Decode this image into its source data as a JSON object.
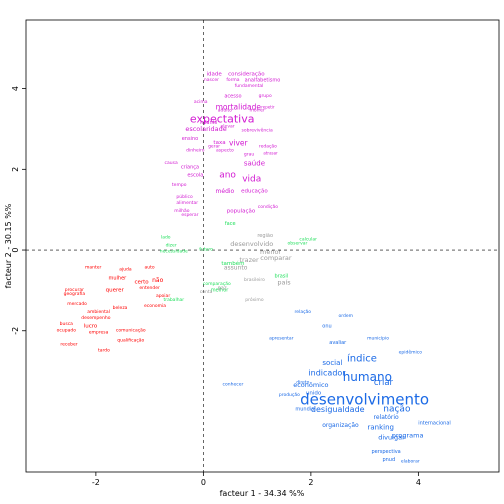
{
  "chart_data": {
    "type": "scatter",
    "title": "",
    "xlabel": "facteur 1 - 34.34 %%",
    "ylabel": "facteur 2 - 30.15 %%",
    "xlim": [
      -3.3,
      5.5
    ],
    "ylim": [
      -5.5,
      5.7
    ],
    "x_ticks": [
      -2,
      0,
      2,
      4
    ],
    "y_ticks": [
      -2,
      0,
      2,
      4
    ],
    "grid": false,
    "reference_lines": {
      "x": 0,
      "y": 0
    },
    "colors": {
      "purple": "#d21ad2",
      "red": "#ff0000",
      "green": "#1fdf5b",
      "blue": "#1b6ae6",
      "gray": "#9b9b9b"
    },
    "series": [
      {
        "color": "purple",
        "points": [
          {
            "label": "expectativa",
            "x": 0.35,
            "y": 3.25,
            "size": 11
          },
          {
            "label": "ano",
            "x": 0.45,
            "y": 1.85,
            "size": 9
          },
          {
            "label": "vida",
            "x": 0.9,
            "y": 1.75,
            "size": 9
          },
          {
            "label": "mortalidade",
            "x": 0.65,
            "y": 3.55,
            "size": 7.5
          },
          {
            "label": "viver",
            "x": 0.65,
            "y": 2.65,
            "size": 7.5
          },
          {
            "label": "escolaridade",
            "x": 0.05,
            "y": 3.0,
            "size": 6.5
          },
          {
            "label": "idade",
            "x": 0.2,
            "y": 4.35,
            "size": 5.5
          },
          {
            "label": "consideração",
            "x": 0.8,
            "y": 4.35,
            "size": 5.5
          },
          {
            "label": "analfabetismo",
            "x": 1.1,
            "y": 4.2,
            "size": 5
          },
          {
            "label": "nascer",
            "x": 0.15,
            "y": 4.2,
            "size": 4.5
          },
          {
            "label": "forma",
            "x": 0.55,
            "y": 4.2,
            "size": 4.5
          },
          {
            "label": "fundamental",
            "x": 0.85,
            "y": 4.05,
            "size": 4.5
          },
          {
            "label": "acesso",
            "x": 0.55,
            "y": 3.8,
            "size": 5
          },
          {
            "label": "grupo",
            "x": 1.15,
            "y": 3.8,
            "size": 4.5
          },
          {
            "label": "acima",
            "x": -0.05,
            "y": 3.65,
            "size": 4.5
          },
          {
            "label": "morrer",
            "x": 1.0,
            "y": 3.45,
            "size": 4.5
          },
          {
            "label": "adulto",
            "x": 0.4,
            "y": 3.45,
            "size": 4.5
          },
          {
            "label": "repetir",
            "x": 1.2,
            "y": 3.55,
            "size": 4
          },
          {
            "label": "infantil",
            "x": 0.1,
            "y": 3.15,
            "size": 5
          },
          {
            "label": "elevar",
            "x": 0.45,
            "y": 3.05,
            "size": 4.5
          },
          {
            "label": "sobrevivência",
            "x": 1.0,
            "y": 2.95,
            "size": 4.5
          },
          {
            "label": "ensino",
            "x": -0.25,
            "y": 2.75,
            "size": 5
          },
          {
            "label": "taxa",
            "x": 0.3,
            "y": 2.65,
            "size": 5.5
          },
          {
            "label": "redação",
            "x": 1.2,
            "y": 2.55,
            "size": 4.5
          },
          {
            "label": "gerar",
            "x": 0.2,
            "y": 2.55,
            "size": 4.5
          },
          {
            "label": "dinheiro",
            "x": -0.15,
            "y": 2.45,
            "size": 4.5
          },
          {
            "label": "aspecto",
            "x": 0.4,
            "y": 2.45,
            "size": 4.5
          },
          {
            "label": "grau",
            "x": 0.85,
            "y": 2.35,
            "size": 4.5
          },
          {
            "label": "atrasar",
            "x": 1.25,
            "y": 2.4,
            "size": 4
          },
          {
            "label": "saúde",
            "x": 0.95,
            "y": 2.15,
            "size": 7
          },
          {
            "label": "causa",
            "x": -0.6,
            "y": 2.15,
            "size": 4.5
          },
          {
            "label": "criança",
            "x": -0.25,
            "y": 2.05,
            "size": 5
          },
          {
            "label": "escola",
            "x": -0.15,
            "y": 1.85,
            "size": 5
          },
          {
            "label": "tempo",
            "x": -0.45,
            "y": 1.6,
            "size": 4.5
          },
          {
            "label": "educação",
            "x": 0.95,
            "y": 1.45,
            "size": 5.5
          },
          {
            "label": "médio",
            "x": 0.4,
            "y": 1.45,
            "size": 6
          },
          {
            "label": "público",
            "x": -0.35,
            "y": 1.3,
            "size": 4.5
          },
          {
            "label": "alimentar",
            "x": -0.3,
            "y": 1.15,
            "size": 4.5
          },
          {
            "label": "condição",
            "x": 1.2,
            "y": 1.05,
            "size": 4.5
          },
          {
            "label": "população",
            "x": 0.7,
            "y": 0.95,
            "size": 5.5
          },
          {
            "label": "esperar",
            "x": -0.25,
            "y": 0.85,
            "size": 4.5
          },
          {
            "label": "milhão",
            "x": -0.4,
            "y": 0.95,
            "size": 4.5
          }
        ]
      },
      {
        "color": "red",
        "points": [
          {
            "label": "manter",
            "x": -2.05,
            "y": -0.45,
            "size": 4.5
          },
          {
            "label": "ajuda",
            "x": -1.45,
            "y": -0.5,
            "size": 4.5
          },
          {
            "label": "auto",
            "x": -1.0,
            "y": -0.45,
            "size": 4.5
          },
          {
            "label": "mulher",
            "x": -1.6,
            "y": -0.7,
            "size": 5
          },
          {
            "label": "não",
            "x": -0.85,
            "y": -0.75,
            "size": 6
          },
          {
            "label": "procurar",
            "x": -2.4,
            "y": -1.0,
            "size": 4.5
          },
          {
            "label": "querer",
            "x": -1.65,
            "y": -1.0,
            "size": 5.5
          },
          {
            "label": "geografia",
            "x": -2.4,
            "y": -1.1,
            "size": 4.5
          },
          {
            "label": "entender",
            "x": -1.0,
            "y": -0.95,
            "size": 4.5
          },
          {
            "label": "mercado",
            "x": -2.35,
            "y": -1.35,
            "size": 4.5
          },
          {
            "label": "beleza",
            "x": -1.55,
            "y": -1.45,
            "size": 4.5
          },
          {
            "label": "ambiental",
            "x": -1.95,
            "y": -1.55,
            "size": 4.5
          },
          {
            "label": "busca",
            "x": -2.55,
            "y": -1.85,
            "size": 4.5
          },
          {
            "label": "desempenho",
            "x": -2.0,
            "y": -1.7,
            "size": 4.5
          },
          {
            "label": "empresa",
            "x": -1.95,
            "y": -2.05,
            "size": 4.5
          },
          {
            "label": "lucro",
            "x": -2.1,
            "y": -1.9,
            "size": 5.5
          },
          {
            "label": "comunicação",
            "x": -1.35,
            "y": -2.0,
            "size": 4.5
          },
          {
            "label": "ocupado",
            "x": -2.55,
            "y": -2.0,
            "size": 4.5
          },
          {
            "label": "qualificação",
            "x": -1.35,
            "y": -2.25,
            "size": 4.5
          },
          {
            "label": "receber",
            "x": -2.5,
            "y": -2.35,
            "size": 4.5
          },
          {
            "label": "economia",
            "x": -0.9,
            "y": -1.4,
            "size": 4.5
          },
          {
            "label": "apoiar",
            "x": -0.75,
            "y": -1.15,
            "size": 4.5
          },
          {
            "label": "certo",
            "x": -1.15,
            "y": -0.8,
            "size": 5.5
          },
          {
            "label": "tardo",
            "x": -1.85,
            "y": -2.5,
            "size": 4.5
          }
        ]
      },
      {
        "color": "green",
        "points": [
          {
            "label": "face",
            "x": 0.5,
            "y": 0.65,
            "size": 5
          },
          {
            "label": "lado",
            "x": -0.7,
            "y": 0.3,
            "size": 4.5
          },
          {
            "label": "dizer",
            "x": -0.6,
            "y": 0.1,
            "size": 4.5
          },
          {
            "label": "necessidade",
            "x": -0.55,
            "y": -0.05,
            "size": 4.5
          },
          {
            "label": "futuro",
            "x": 0.05,
            "y": 0.0,
            "size": 4.5
          },
          {
            "label": "também",
            "x": 0.55,
            "y": -0.35,
            "size": 5.5
          },
          {
            "label": "brasil",
            "x": 1.45,
            "y": -0.65,
            "size": 5
          },
          {
            "label": "observar",
            "x": 1.75,
            "y": 0.15,
            "size": 4.5
          },
          {
            "label": "calcular",
            "x": 1.95,
            "y": 0.25,
            "size": 4.5
          },
          {
            "label": "trabalhar",
            "x": -0.55,
            "y": -1.25,
            "size": 4.5
          },
          {
            "label": "melhor",
            "x": 0.3,
            "y": -1.0,
            "size": 5
          },
          {
            "label": "comparação",
            "x": 0.25,
            "y": -0.85,
            "size": 4.5
          }
        ]
      },
      {
        "color": "gray",
        "points": [
          {
            "label": "desenvolvido",
            "x": 0.9,
            "y": 0.15,
            "size": 6.5
          },
          {
            "label": "menor",
            "x": 1.25,
            "y": -0.05,
            "size": 6.5
          },
          {
            "label": "comparar",
            "x": 1.35,
            "y": -0.2,
            "size": 6.5
          },
          {
            "label": "trazer",
            "x": 0.85,
            "y": -0.25,
            "size": 6.5
          },
          {
            "label": "assunto",
            "x": 0.6,
            "y": -0.45,
            "size": 6
          },
          {
            "label": "país",
            "x": 1.5,
            "y": -0.8,
            "size": 6.5
          },
          {
            "label": "região",
            "x": 1.15,
            "y": 0.35,
            "size": 5
          },
          {
            "label": "paz",
            "x": 0.35,
            "y": -0.95,
            "size": 5
          },
          {
            "label": "conta",
            "x": 0.05,
            "y": -1.05,
            "size": 4.5
          },
          {
            "label": "brasileiro",
            "x": 0.95,
            "y": -0.75,
            "size": 4.5
          },
          {
            "label": "próximo",
            "x": 0.95,
            "y": -1.25,
            "size": 4.5
          }
        ]
      },
      {
        "color": "blue",
        "points": [
          {
            "label": "desenvolvimento",
            "x": 3.0,
            "y": -3.7,
            "size": 15
          },
          {
            "label": "humano",
            "x": 3.05,
            "y": -3.15,
            "size": 12
          },
          {
            "label": "índice",
            "x": 2.95,
            "y": -2.7,
            "size": 10
          },
          {
            "label": "desigualdade",
            "x": 2.5,
            "y": -3.95,
            "size": 8
          },
          {
            "label": "nação",
            "x": 3.6,
            "y": -3.95,
            "size": 9
          },
          {
            "label": "criar",
            "x": 3.35,
            "y": -3.3,
            "size": 8.5
          },
          {
            "label": "indicador",
            "x": 2.3,
            "y": -3.05,
            "size": 8
          },
          {
            "label": "social",
            "x": 2.4,
            "y": -2.8,
            "size": 7
          },
          {
            "label": "econômico",
            "x": 2.0,
            "y": -3.35,
            "size": 6.5
          },
          {
            "label": "unido",
            "x": 2.05,
            "y": -3.55,
            "size": 5.5
          },
          {
            "label": "relatório",
            "x": 3.4,
            "y": -4.15,
            "size": 6
          },
          {
            "label": "organização",
            "x": 2.55,
            "y": -4.35,
            "size": 6
          },
          {
            "label": "ranking",
            "x": 3.3,
            "y": -4.4,
            "size": 7
          },
          {
            "label": "programa",
            "x": 3.8,
            "y": -4.6,
            "size": 6.5
          },
          {
            "label": "divulgar",
            "x": 3.5,
            "y": -4.65,
            "size": 6.5
          },
          {
            "label": "internacional",
            "x": 4.3,
            "y": -4.3,
            "size": 5
          },
          {
            "label": "perspectiva",
            "x": 3.4,
            "y": -5.0,
            "size": 5
          },
          {
            "label": "pnud",
            "x": 3.45,
            "y": -5.2,
            "size": 5
          },
          {
            "label": "elaborar",
            "x": 3.85,
            "y": -5.25,
            "size": 4.5
          },
          {
            "label": "mundial",
            "x": 1.9,
            "y": -3.95,
            "size": 5
          },
          {
            "label": "ordem",
            "x": 2.65,
            "y": -1.65,
            "size": 4.5
          },
          {
            "label": "onu",
            "x": 2.3,
            "y": -1.9,
            "size": 5
          },
          {
            "label": "avaliar",
            "x": 2.5,
            "y": -2.3,
            "size": 5
          },
          {
            "label": "município",
            "x": 3.25,
            "y": -2.2,
            "size": 4.5
          },
          {
            "label": "epidêmico",
            "x": 3.85,
            "y": -2.55,
            "size": 4.5
          },
          {
            "label": "relação",
            "x": 1.85,
            "y": -1.55,
            "size": 4.5
          },
          {
            "label": "apresentar",
            "x": 1.45,
            "y": -2.2,
            "size": 4.5
          },
          {
            "label": "direto",
            "x": 1.85,
            "y": -3.3,
            "size": 4.5
          },
          {
            "label": "produção",
            "x": 1.6,
            "y": -3.6,
            "size": 4.5
          },
          {
            "label": "conhecer",
            "x": 0.55,
            "y": -3.35,
            "size": 4.5
          }
        ]
      }
    ]
  }
}
